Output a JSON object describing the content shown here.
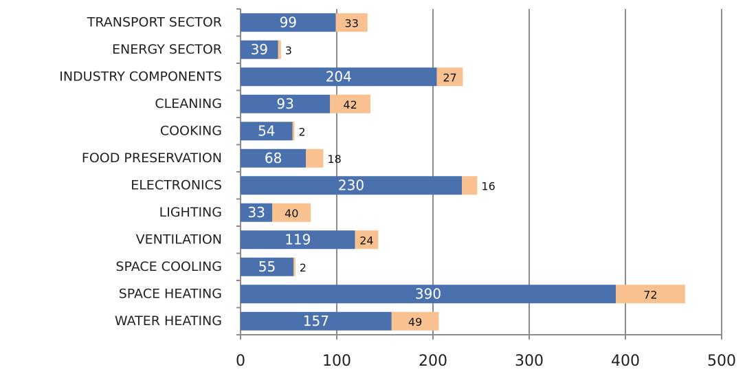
{
  "chart_data": {
    "type": "stacked_barh",
    "categories": [
      "TRANSPORT SECTOR",
      "ENERGY SECTOR",
      "INDUSTRY COMPONENTS",
      "CLEANING",
      "COOKING",
      "FOOD PRESERVATION",
      "ELECTRONICS",
      "LIGHTING",
      "VENTILATION",
      "SPACE COOLING",
      "SPACE HEATING",
      "WATER HEATING"
    ],
    "series": [
      {
        "color": "#4a70ad",
        "values": [
          99,
          39,
          204,
          93,
          54,
          68,
          230,
          33,
          119,
          55,
          390,
          157
        ]
      },
      {
        "color": "#f9c18f",
        "values": [
          33,
          3,
          27,
          42,
          2,
          18,
          16,
          40,
          24,
          2,
          72,
          49
        ]
      }
    ],
    "xlim": [
      0,
      500
    ],
    "xticks": [
      0,
      100,
      200,
      300,
      400,
      500
    ],
    "grid": true
  }
}
